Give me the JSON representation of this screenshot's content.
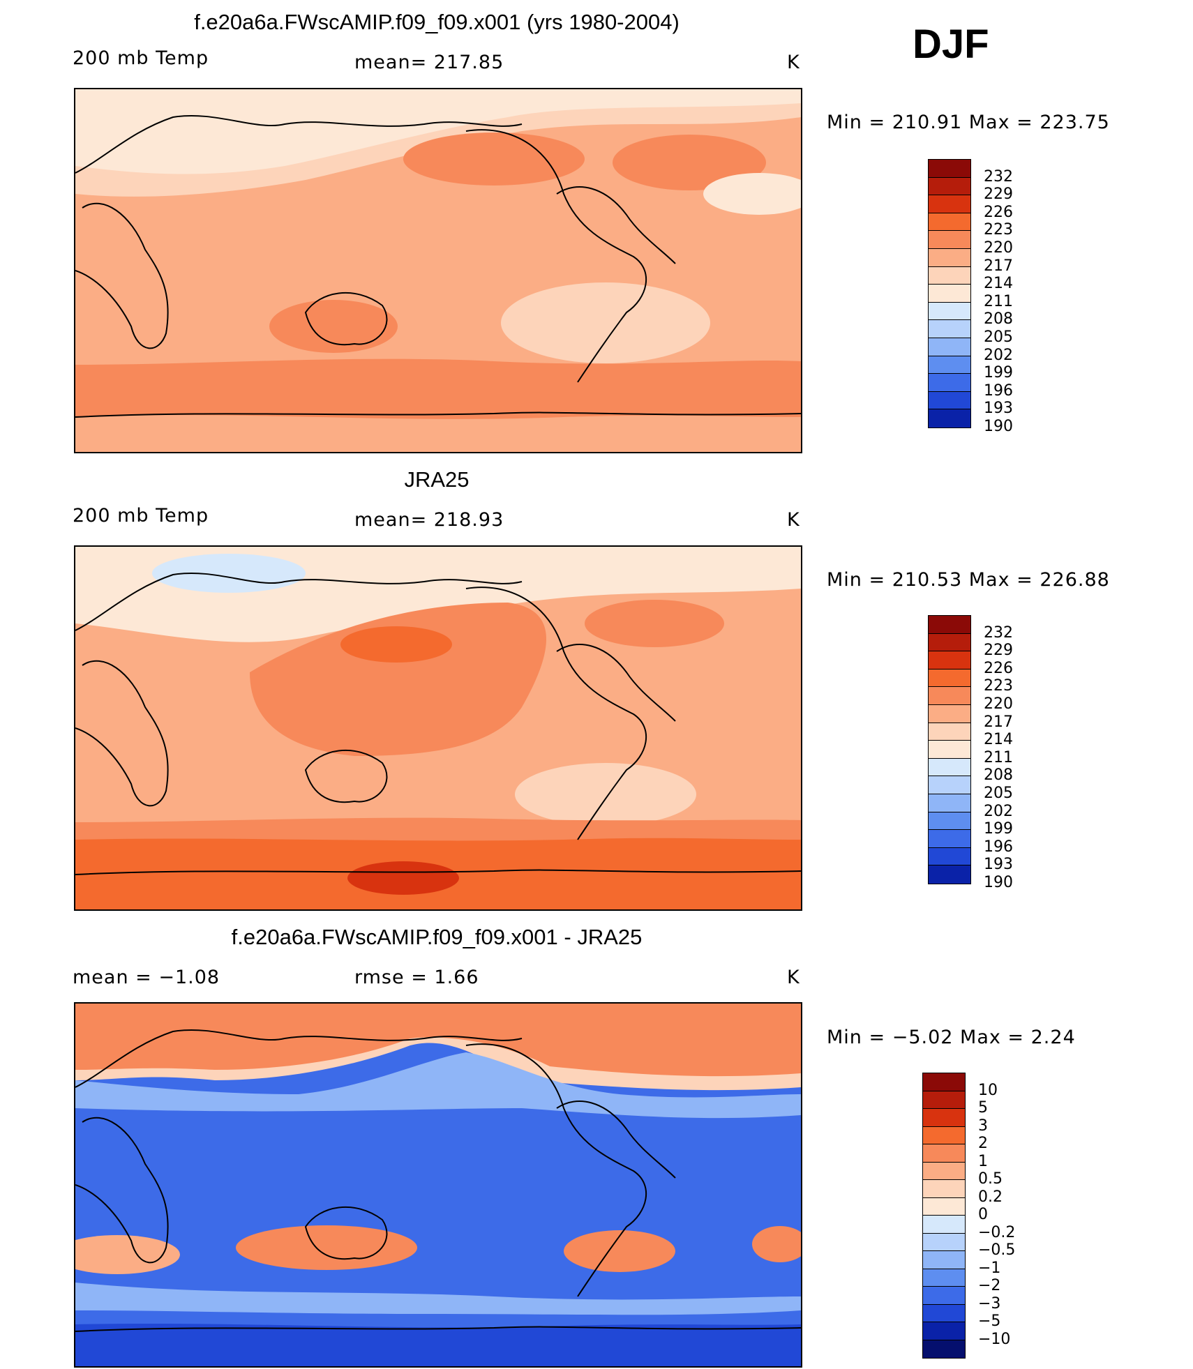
{
  "season": "DJF",
  "panels": [
    {
      "title": "f.e20a6a.FWscAMIP.f09_f09.x001 (yrs 1980-2004)",
      "left_label": "200 mb Temp",
      "center_label": "mean= 217.85",
      "units": "K",
      "range_label": "Min  =  210.91  Max  =  223.75",
      "levels": [
        "232",
        "229",
        "226",
        "223",
        "220",
        "217",
        "214",
        "211",
        "208",
        "205",
        "202",
        "199",
        "196",
        "193",
        "190"
      ],
      "level_colors": [
        "#8b0a07",
        "#b51d0b",
        "#d8330f",
        "#f46a2e",
        "#f7895a",
        "#fbad85",
        "#fdd4ba",
        "#fde8d6",
        "#d6e8fb",
        "#b7d2fb",
        "#8fb5f7",
        "#5e8ef0",
        "#3d6be8",
        "#2148d6",
        "#0a22a8"
      ]
    },
    {
      "title": "JRA25",
      "left_label": "200 mb Temp",
      "center_label": "mean= 218.93",
      "units": "K",
      "range_label": "Min  =  210.53  Max  =  226.88",
      "levels": [
        "232",
        "229",
        "226",
        "223",
        "220",
        "217",
        "214",
        "211",
        "208",
        "205",
        "202",
        "199",
        "196",
        "193",
        "190"
      ],
      "level_colors": [
        "#8b0a07",
        "#b51d0b",
        "#d8330f",
        "#f46a2e",
        "#f7895a",
        "#fbad85",
        "#fdd4ba",
        "#fde8d6",
        "#d6e8fb",
        "#b7d2fb",
        "#8fb5f7",
        "#5e8ef0",
        "#3d6be8",
        "#2148d6",
        "#0a22a8"
      ]
    },
    {
      "title": "f.e20a6a.FWscAMIP.f09_f09.x001 - JRA25",
      "left_label": "mean  =    −1.08",
      "center_label": "rmse  =     1.66",
      "units": "K",
      "range_label": "Min  =    −5.02  Max  =      2.24",
      "levels": [
        "10",
        "5",
        "3",
        "2",
        "1",
        "0.5",
        "0.2",
        "0",
        "−0.2",
        "−0.5",
        "−1",
        "−2",
        "−3",
        "−5",
        "−10"
      ],
      "level_colors": [
        "#8b0a07",
        "#b51d0b",
        "#d8330f",
        "#f46a2e",
        "#f7895a",
        "#fbad85",
        "#fdd4ba",
        "#fde8d6",
        "#d6e8fb",
        "#b7d2fb",
        "#8fb5f7",
        "#5e8ef0",
        "#3d6be8",
        "#2148d6",
        "#0a22a8",
        "#050f6e"
      ]
    }
  ],
  "colors": {
    "c1": "#fde8d6",
    "c2": "#fdd4ba",
    "c3": "#fbad85",
    "c4": "#f7895a",
    "c5": "#f46a2e",
    "c6": "#d8330f",
    "b1": "#d6e8fb",
    "b2": "#b7d2fb",
    "b3": "#8fb5f7",
    "b4": "#5e8ef0",
    "b5": "#3d6be8",
    "b6": "#2148d6"
  }
}
